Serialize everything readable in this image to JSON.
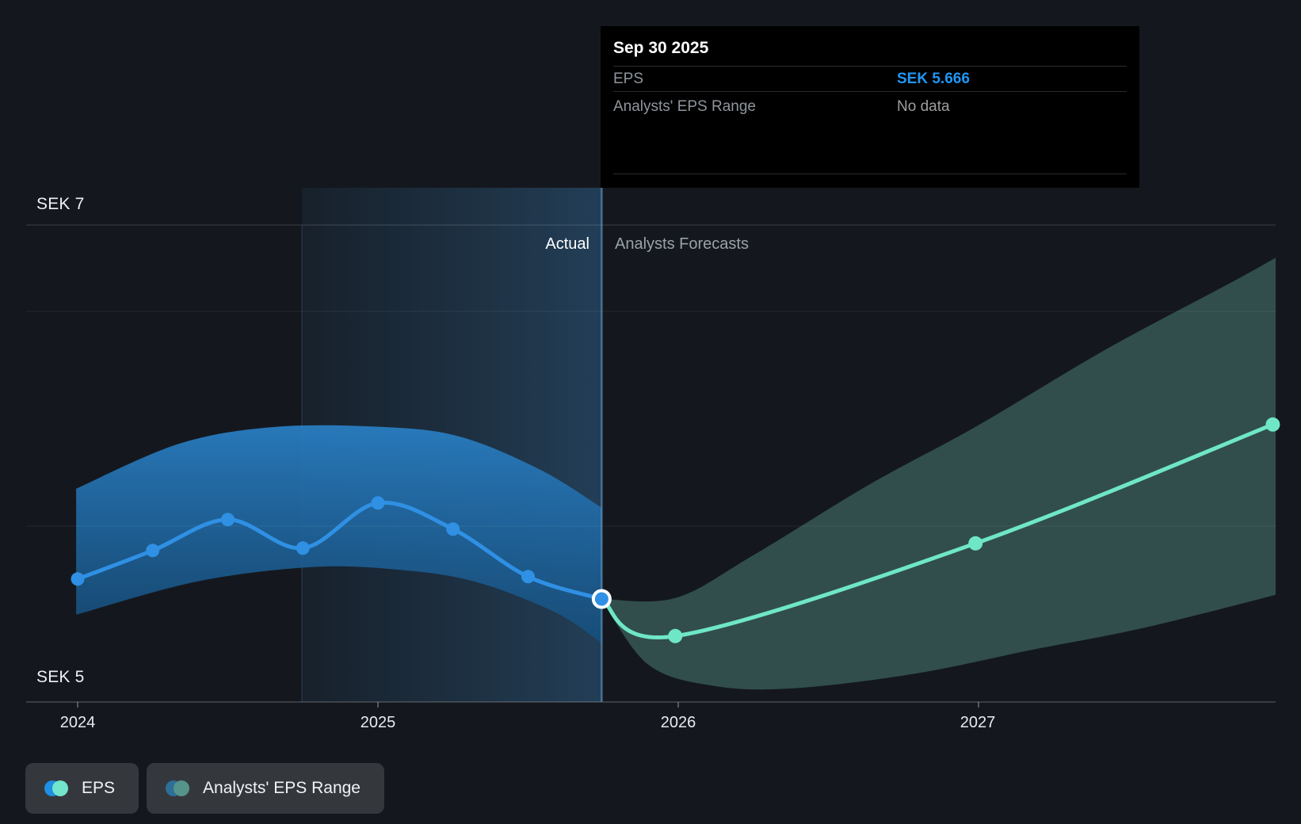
{
  "y_axis": {
    "top_label": "SEK 7",
    "bottom_label": "SEK 5"
  },
  "x_axis": {
    "ticks": [
      "2024",
      "2025",
      "2026",
      "2027"
    ]
  },
  "annotations": {
    "actual": "Actual",
    "forecast": "Analysts Forecasts"
  },
  "tooltip": {
    "date": "Sep 30 2025",
    "rows": [
      {
        "label": "EPS",
        "value": "SEK 5.666",
        "value_color": "#2196F3"
      },
      {
        "label": "Analysts' EPS Range",
        "value": "No data",
        "value_color": "#9E9E9E"
      }
    ]
  },
  "legend": {
    "items": [
      {
        "label": "EPS",
        "colors": [
          "#1E8FE2",
          "#73E5CC"
        ]
      },
      {
        "label": "Analysts' EPS Range",
        "colors": [
          "#2E6F97",
          "#55948A"
        ]
      }
    ]
  },
  "chart_data": {
    "type": "line",
    "title": "EPS: past performance and analysts forecasts",
    "unit": "SEK",
    "ylim": [
      5,
      7
    ],
    "grid": true,
    "legend_position": "bottom-left",
    "hover_point": {
      "t": 2025.745,
      "date": "Sep 30 2025",
      "value": 5.666
    },
    "series": [
      {
        "name": "EPS (actual)",
        "color": "#2F90E4",
        "points": [
          {
            "t": 2024.0,
            "v": 5.75
          },
          {
            "t": 2024.25,
            "v": 5.87
          },
          {
            "t": 2024.5,
            "v": 6.0
          },
          {
            "t": 2024.75,
            "v": 5.88
          },
          {
            "t": 2025.0,
            "v": 6.07
          },
          {
            "t": 2025.25,
            "v": 5.96
          },
          {
            "t": 2025.5,
            "v": 5.76
          },
          {
            "t": 2025.745,
            "v": 5.666
          }
        ]
      },
      {
        "name": "EPS (analysts forecast)",
        "color": "#6FE7C6",
        "points": [
          {
            "t": 2025.745,
            "v": 5.666
          },
          {
            "t": 2025.99,
            "v": 5.51
          },
          {
            "t": 2026.99,
            "v": 5.9
          },
          {
            "t": 2027.98,
            "v": 6.4
          }
        ]
      }
    ],
    "bands": [
      {
        "name": "Actual EPS range",
        "fill_top": "rgba(41,125,193,0.95)",
        "fill_bottom": "rgba(21,80,128,0.80)",
        "top": [
          [
            2023.995,
            6.13
          ],
          [
            2024.34,
            6.32
          ],
          [
            2024.66,
            6.39
          ],
          [
            2025.01,
            6.39
          ],
          [
            2025.27,
            6.35
          ],
          [
            2025.54,
            6.21
          ],
          [
            2025.745,
            6.05
          ]
        ],
        "bottom": [
          [
            2023.995,
            5.6
          ],
          [
            2024.4,
            5.74
          ],
          [
            2024.78,
            5.8
          ],
          [
            2025.06,
            5.79
          ],
          [
            2025.32,
            5.74
          ],
          [
            2025.59,
            5.61
          ],
          [
            2025.745,
            5.48
          ]
        ]
      },
      {
        "name": "Analysts' EPS range",
        "fill": "rgba(130,225,205,0.27)",
        "top": [
          [
            2025.745,
            5.666
          ],
          [
            2025.99,
            5.67
          ],
          [
            2026.25,
            5.85
          ],
          [
            2026.64,
            6.15
          ],
          [
            2026.99,
            6.39
          ],
          [
            2027.43,
            6.72
          ],
          [
            2027.86,
            7.01
          ],
          [
            2028.07,
            7.16
          ]
        ],
        "bottom": [
          [
            2025.745,
            5.666
          ],
          [
            2025.9,
            5.39
          ],
          [
            2026.12,
            5.3
          ],
          [
            2026.38,
            5.29
          ],
          [
            2026.78,
            5.35
          ],
          [
            2027.17,
            5.45
          ],
          [
            2027.57,
            5.55
          ],
          [
            2028.07,
            5.71
          ]
        ]
      }
    ]
  }
}
